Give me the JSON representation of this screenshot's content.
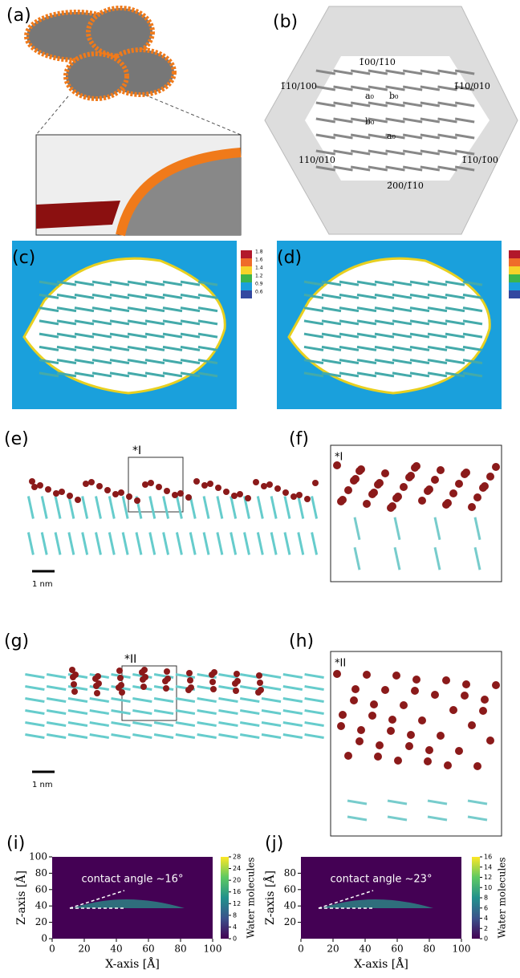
{
  "panels": {
    "a": {
      "label": "(a)"
    },
    "b": {
      "label": "(b)",
      "facets": [
        "1̄00/1̄10",
        "1̄10/100",
        "1̄10/010",
        "110/010",
        "1̄10/1̄00",
        "2̄00/1̄10"
      ],
      "vectors": [
        "a₀",
        "b₀",
        "b₀",
        "a₀"
      ]
    },
    "c": {
      "label": "(c)",
      "colorbar": [
        1.8,
        1.6,
        1.4,
        1.2,
        0.9,
        0.6
      ]
    },
    "d": {
      "label": "(d)"
    },
    "e": {
      "label": "(e)",
      "inset": "*I",
      "scale": "1 nm"
    },
    "f": {
      "label": "(f)",
      "inset": "*I"
    },
    "g": {
      "label": "(g)",
      "inset": "*II",
      "scale": "1 nm"
    },
    "h": {
      "label": "(h)",
      "inset": "*II"
    },
    "i": {
      "label": "(i)",
      "annotation": "contact angle ~16°",
      "xlabel": "X-axis [Å]",
      "ylabel": "Z-axis [Å]",
      "xlim": [
        0,
        100
      ],
      "ylim": [
        0,
        100
      ],
      "xticks": [
        0,
        20,
        40,
        60,
        80,
        100
      ],
      "yticks": [
        0,
        20,
        40,
        60,
        80,
        100
      ],
      "colorbar": {
        "label": "Water molecules",
        "lim": [
          0,
          28
        ],
        "ticks": [
          0,
          4,
          8,
          12,
          16,
          20,
          24,
          28
        ]
      }
    },
    "j": {
      "label": "(j)",
      "annotation": "contact angle ~23°",
      "xlabel": "X-axis [Å]",
      "ylabel": "Z-axis [Å]",
      "xlim": [
        0,
        100
      ],
      "ylim": [
        0,
        100
      ],
      "xticks": [
        0,
        20,
        40,
        60,
        80,
        100
      ],
      "yticks": [
        20,
        40,
        60,
        80
      ],
      "colorbar": {
        "label": "Water molecules",
        "lim": [
          0,
          16
        ],
        "ticks": [
          0,
          2,
          4,
          6,
          8,
          10,
          12,
          14,
          16
        ]
      }
    }
  }
}
